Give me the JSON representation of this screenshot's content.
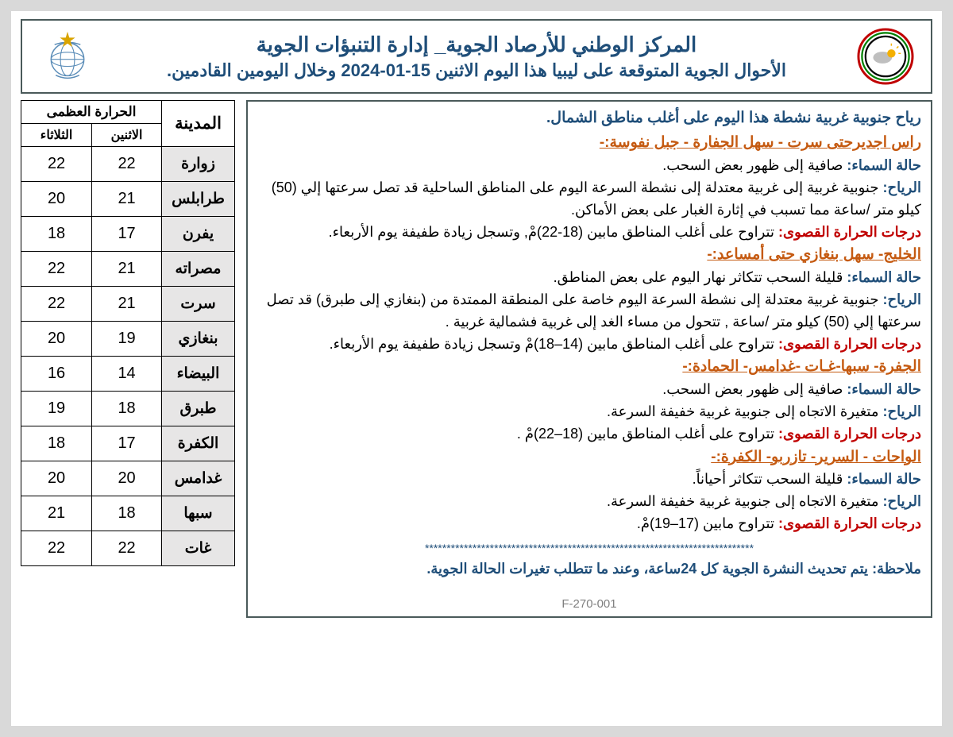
{
  "header": {
    "title": "المركز الوطني للأرصاد الجوية_ إدارة التنبؤات الجوية",
    "subtitle": "الأحوال الجوية المتوقعة على ليبيا هذا اليوم الاثنين 15-01-2024 وخلال اليومين القادمين."
  },
  "intro": "رياح جنوبية غربية نشطة هذا اليوم على أغلب مناطق الشمال.",
  "regions": [
    {
      "heading": "راس اجديرحتى سرت - سهل الجفارة - جبل نفوسة:-",
      "lines": [
        {
          "label": "حالة السماء:",
          "text": " صافية إلى ظهور بعض السحب."
        },
        {
          "label": "الرياح:",
          "text": " جنوبية غربية إلى غربية معتدلة إلى نشطة السرعة اليوم على المناطق الساحلية  قد تصل سرعتها إلي (50) كيلو متر /ساعة مما تسبب في إثارة الغبار على بعض الأماكن."
        },
        {
          "label_red": "درجات الحرارة القصوى:",
          "text": " تتراوح على أغلب المناطق مابين (18-22)مْ, وتسجل زيادة طفيفة يوم الأربعاء."
        }
      ]
    },
    {
      "heading": "الخليج- سهل بنغازي حتى أمساعد:-",
      "lines": [
        {
          "label": "حالة السماء:",
          "text": " قليلة السحب تتكاثر نهار اليوم على بعض المناطق."
        },
        {
          "label": "الرياح:",
          "text": " جنوبية غربية معتدلة إلى نشطة السرعة اليوم خاصة على المنطقة الممتدة من (بنغازي إلى طبرق) قد تصل سرعتها إلي (50) كيلو متر /ساعة , تتحول من مساء الغد إلى غربية فشمالية غربية ."
        },
        {
          "label_red": "درجات الحرارة القصوى:",
          "text": " تتراوح على أغلب المناطق مابين (14–18)مْ وتسجل زيادة طفيفة يوم الأربعاء."
        }
      ]
    },
    {
      "heading": "الجفرة- سبها-غـات -غدامس- الحمادة:-",
      "lines": [
        {
          "label": "حالة السماء:",
          "text": " صافية إلى ظهور بعض السحب."
        },
        {
          "label": "الرياح:",
          "text": " متغيرة  الاتجاه إلى جنوبية غربية خفيفة السرعة."
        },
        {
          "label_red": "درجات الحرارة القصوى:",
          "text": " تتراوح على أغلب المناطق مابين (18–22)مْ ."
        }
      ]
    },
    {
      "heading": "الواحات - السرير- تازربو- الكفرة:-",
      "lines": [
        {
          "label": "حالة السماء:",
          "text": " قليلة السحب تتكاثر أحياناً."
        },
        {
          "label": "الرياح:",
          "text": " متغيرة  الاتجاه إلى جنوبية غربية خفيفة السرعة."
        },
        {
          "label_red": "درجات الحرارة القصوى:",
          "text": " تتراوح مابين (17–19)مْ."
        }
      ]
    }
  ],
  "stars": "****************************************************************************",
  "note": "ملاحظة: يتم تحديث النشرة الجوية كل 24ساعة، وعند ما تتطلب تغيرات الحالة الجوية.",
  "footer_code": "F-270-001",
  "table": {
    "city_header": "المدينة",
    "max_header": "الحرارة العظمى",
    "day1": "الاثنين",
    "day2": "الثلاثاء",
    "rows": [
      {
        "city": "زوارة",
        "d1": "22",
        "d2": "22"
      },
      {
        "city": "طرابلس",
        "d1": "21",
        "d2": "20"
      },
      {
        "city": "يفرن",
        "d1": "17",
        "d2": "18"
      },
      {
        "city": "مصراته",
        "d1": "21",
        "d2": "22"
      },
      {
        "city": "سرت",
        "d1": "21",
        "d2": "22"
      },
      {
        "city": "بنغازي",
        "d1": "19",
        "d2": "20"
      },
      {
        "city": "البيضاء",
        "d1": "14",
        "d2": "16"
      },
      {
        "city": "طبرق",
        "d1": "18",
        "d2": "19"
      },
      {
        "city": "الكفرة",
        "d1": "17",
        "d2": "18"
      },
      {
        "city": "غدامس",
        "d1": "20",
        "d2": "20"
      },
      {
        "city": "سبها",
        "d1": "18",
        "d2": "21"
      },
      {
        "city": "غات",
        "d1": "22",
        "d2": "22"
      }
    ]
  }
}
